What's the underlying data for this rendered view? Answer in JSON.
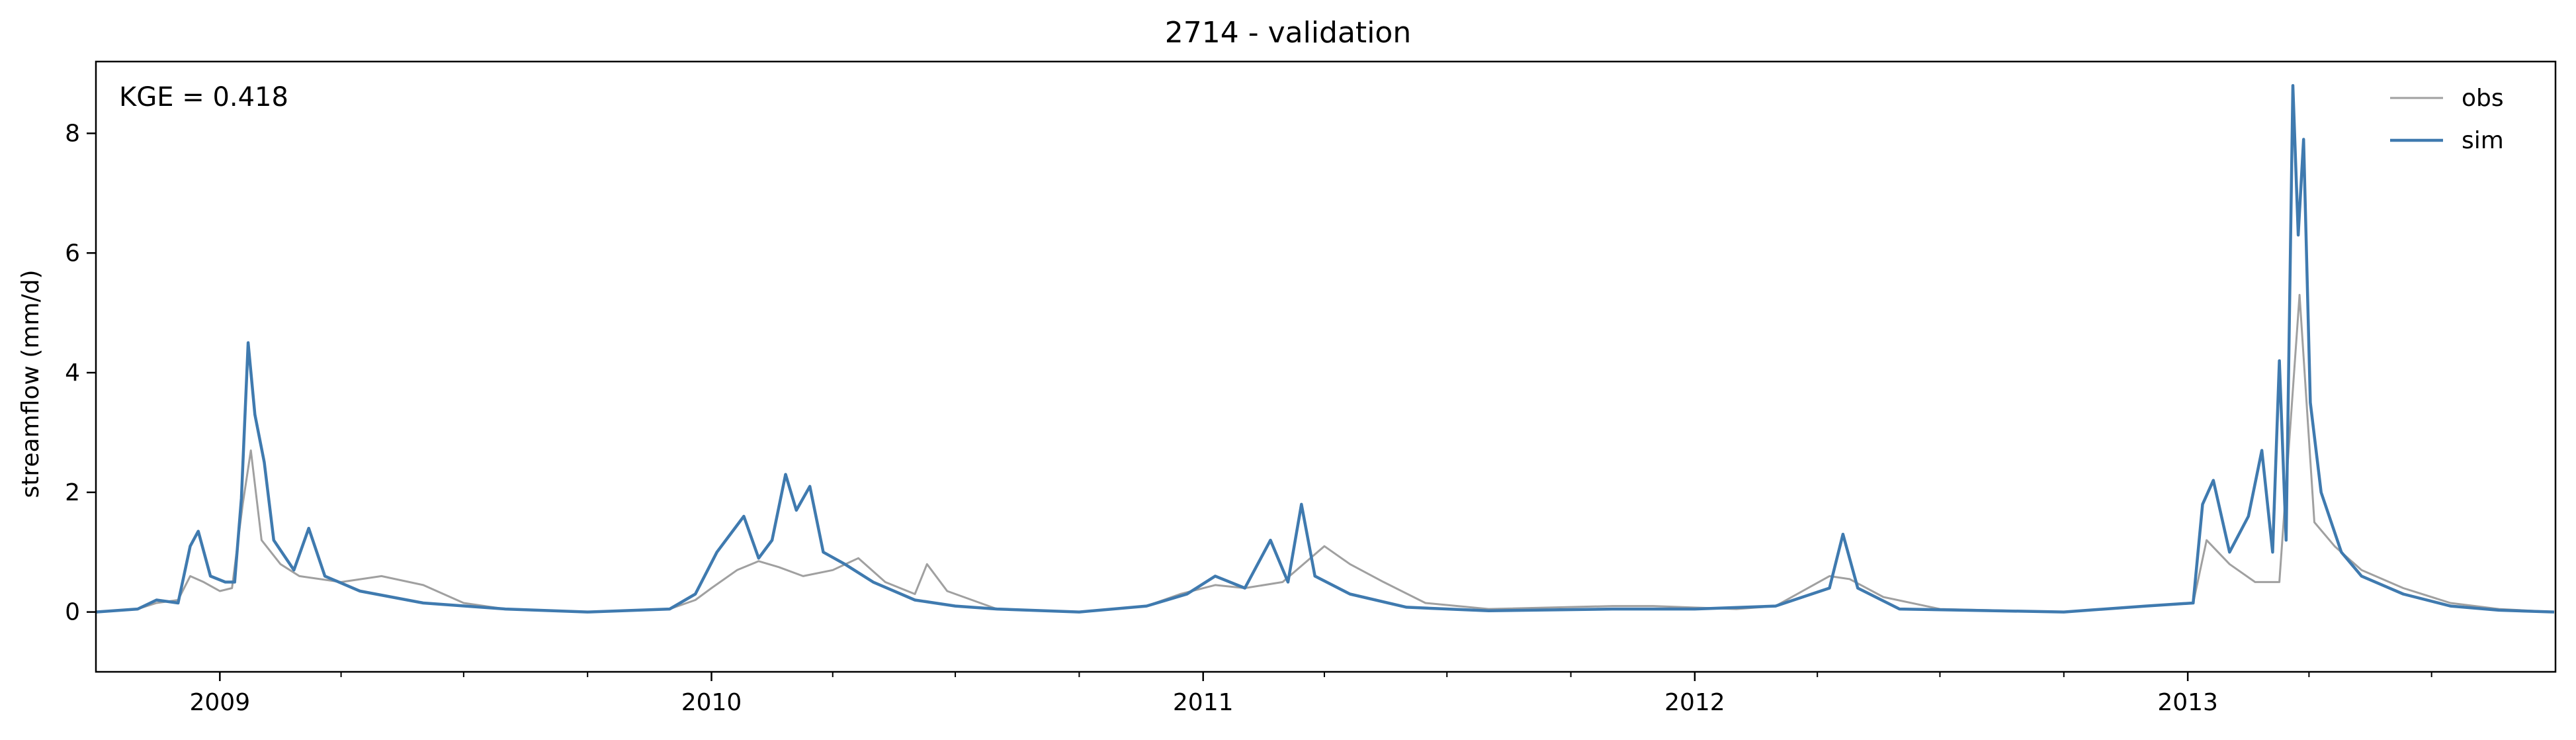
{
  "chart_data": {
    "type": "line",
    "title": "2714 - validation",
    "ylabel": "streamflow (mm/d)",
    "xlabel": "",
    "annotation": "KGE = 0.418",
    "x_range": [
      "2008-10-01",
      "2013-09-30"
    ],
    "ylim": [
      -1,
      9.2
    ],
    "y_ticks": [
      0,
      2,
      4,
      6,
      8
    ],
    "x_ticks": [
      {
        "date": "2009-01-01",
        "label": "2009"
      },
      {
        "date": "2010-01-01",
        "label": "2010"
      },
      {
        "date": "2011-01-01",
        "label": "2011"
      },
      {
        "date": "2012-01-01",
        "label": "2012"
      },
      {
        "date": "2013-01-01",
        "label": "2013"
      }
    ],
    "grid": false,
    "legend": "top-right",
    "series": [
      {
        "name": "obs",
        "color": "#a0a0a0",
        "points": [
          [
            "2008-10-01",
            0.0
          ],
          [
            "2008-11-01",
            0.05
          ],
          [
            "2008-11-15",
            0.15
          ],
          [
            "2008-12-01",
            0.2
          ],
          [
            "2008-12-10",
            0.6
          ],
          [
            "2008-12-20",
            0.5
          ],
          [
            "2009-01-01",
            0.35
          ],
          [
            "2009-01-10",
            0.4
          ],
          [
            "2009-01-18",
            1.8
          ],
          [
            "2009-01-24",
            2.7
          ],
          [
            "2009-02-01",
            1.2
          ],
          [
            "2009-02-15",
            0.8
          ],
          [
            "2009-03-01",
            0.6
          ],
          [
            "2009-04-01",
            0.5
          ],
          [
            "2009-05-01",
            0.6
          ],
          [
            "2009-06-01",
            0.45
          ],
          [
            "2009-07-01",
            0.15
          ],
          [
            "2009-08-01",
            0.05
          ],
          [
            "2009-10-01",
            0.0
          ],
          [
            "2009-12-01",
            0.05
          ],
          [
            "2009-12-20",
            0.2
          ],
          [
            "2010-01-01",
            0.4
          ],
          [
            "2010-01-20",
            0.7
          ],
          [
            "2010-02-05",
            0.85
          ],
          [
            "2010-02-20",
            0.75
          ],
          [
            "2010-03-10",
            0.6
          ],
          [
            "2010-04-01",
            0.7
          ],
          [
            "2010-04-20",
            0.9
          ],
          [
            "2010-05-10",
            0.5
          ],
          [
            "2010-06-01",
            0.3
          ],
          [
            "2010-06-10",
            0.8
          ],
          [
            "2010-06-25",
            0.35
          ],
          [
            "2010-08-01",
            0.05
          ],
          [
            "2010-10-01",
            0.0
          ],
          [
            "2010-11-20",
            0.1
          ],
          [
            "2010-12-15",
            0.3
          ],
          [
            "2011-01-10",
            0.45
          ],
          [
            "2011-02-01",
            0.4
          ],
          [
            "2011-03-01",
            0.5
          ],
          [
            "2011-04-01",
            1.1
          ],
          [
            "2011-04-20",
            0.8
          ],
          [
            "2011-05-15",
            0.5
          ],
          [
            "2011-06-15",
            0.15
          ],
          [
            "2011-08-01",
            0.05
          ],
          [
            "2011-11-01",
            0.1
          ],
          [
            "2011-12-01",
            0.1
          ],
          [
            "2012-02-01",
            0.05
          ],
          [
            "2012-03-01",
            0.1
          ],
          [
            "2012-04-10",
            0.6
          ],
          [
            "2012-04-25",
            0.55
          ],
          [
            "2012-05-20",
            0.25
          ],
          [
            "2012-07-01",
            0.05
          ],
          [
            "2012-10-01",
            0.0
          ],
          [
            "2012-12-01",
            0.1
          ],
          [
            "2013-01-05",
            0.15
          ],
          [
            "2013-01-15",
            1.2
          ],
          [
            "2013-02-01",
            0.8
          ],
          [
            "2013-02-20",
            0.5
          ],
          [
            "2013-03-10",
            0.5
          ],
          [
            "2013-03-25",
            5.3
          ],
          [
            "2013-04-05",
            1.5
          ],
          [
            "2013-04-20",
            1.1
          ],
          [
            "2013-05-10",
            0.7
          ],
          [
            "2013-06-10",
            0.4
          ],
          [
            "2013-07-15",
            0.15
          ],
          [
            "2013-08-20",
            0.05
          ],
          [
            "2013-09-30",
            0.0
          ]
        ]
      },
      {
        "name": "sim",
        "color": "#3f7aaf",
        "points": [
          [
            "2008-10-01",
            0.0
          ],
          [
            "2008-11-01",
            0.05
          ],
          [
            "2008-11-15",
            0.2
          ],
          [
            "2008-12-01",
            0.15
          ],
          [
            "2008-12-10",
            1.1
          ],
          [
            "2008-12-16",
            1.35
          ],
          [
            "2008-12-25",
            0.6
          ],
          [
            "2009-01-05",
            0.5
          ],
          [
            "2009-01-12",
            0.5
          ],
          [
            "2009-01-17",
            1.9
          ],
          [
            "2009-01-22",
            4.5
          ],
          [
            "2009-01-27",
            3.3
          ],
          [
            "2009-02-03",
            2.5
          ],
          [
            "2009-02-10",
            1.2
          ],
          [
            "2009-02-25",
            0.7
          ],
          [
            "2009-03-08",
            1.4
          ],
          [
            "2009-03-20",
            0.6
          ],
          [
            "2009-04-15",
            0.35
          ],
          [
            "2009-06-01",
            0.15
          ],
          [
            "2009-08-01",
            0.05
          ],
          [
            "2009-10-01",
            0.0
          ],
          [
            "2009-12-01",
            0.05
          ],
          [
            "2009-12-20",
            0.3
          ],
          [
            "2010-01-05",
            1.0
          ],
          [
            "2010-01-15",
            1.3
          ],
          [
            "2010-01-25",
            1.6
          ],
          [
            "2010-02-05",
            0.9
          ],
          [
            "2010-02-15",
            1.2
          ],
          [
            "2010-02-25",
            2.3
          ],
          [
            "2010-03-05",
            1.7
          ],
          [
            "2010-03-15",
            2.1
          ],
          [
            "2010-03-25",
            1.0
          ],
          [
            "2010-04-10",
            0.8
          ],
          [
            "2010-05-01",
            0.5
          ],
          [
            "2010-06-01",
            0.2
          ],
          [
            "2010-07-01",
            0.1
          ],
          [
            "2010-08-01",
            0.05
          ],
          [
            "2010-10-01",
            0.0
          ],
          [
            "2010-11-20",
            0.1
          ],
          [
            "2010-12-20",
            0.3
          ],
          [
            "2011-01-10",
            0.6
          ],
          [
            "2011-02-01",
            0.4
          ],
          [
            "2011-02-20",
            1.2
          ],
          [
            "2011-03-05",
            0.5
          ],
          [
            "2011-03-15",
            1.8
          ],
          [
            "2011-03-25",
            0.6
          ],
          [
            "2011-04-20",
            0.3
          ],
          [
            "2011-06-01",
            0.08
          ],
          [
            "2011-08-01",
            0.02
          ],
          [
            "2011-11-01",
            0.05
          ],
          [
            "2012-01-01",
            0.05
          ],
          [
            "2012-03-01",
            0.1
          ],
          [
            "2012-04-10",
            0.4
          ],
          [
            "2012-04-20",
            1.3
          ],
          [
            "2012-05-01",
            0.4
          ],
          [
            "2012-06-01",
            0.05
          ],
          [
            "2012-10-01",
            0.0
          ],
          [
            "2012-12-01",
            0.1
          ],
          [
            "2013-01-05",
            0.15
          ],
          [
            "2013-01-12",
            1.8
          ],
          [
            "2013-01-20",
            2.2
          ],
          [
            "2013-02-01",
            1.0
          ],
          [
            "2013-02-15",
            1.6
          ],
          [
            "2013-02-25",
            2.7
          ],
          [
            "2013-03-05",
            1.0
          ],
          [
            "2013-03-10",
            4.2
          ],
          [
            "2013-03-15",
            1.2
          ],
          [
            "2013-03-20",
            8.8
          ],
          [
            "2013-03-24",
            6.3
          ],
          [
            "2013-03-28",
            7.9
          ],
          [
            "2013-04-02",
            3.5
          ],
          [
            "2013-04-10",
            2.0
          ],
          [
            "2013-04-25",
            1.0
          ],
          [
            "2013-05-10",
            0.6
          ],
          [
            "2013-06-10",
            0.3
          ],
          [
            "2013-07-15",
            0.1
          ],
          [
            "2013-08-20",
            0.03
          ],
          [
            "2013-09-30",
            0.0
          ]
        ]
      }
    ]
  }
}
